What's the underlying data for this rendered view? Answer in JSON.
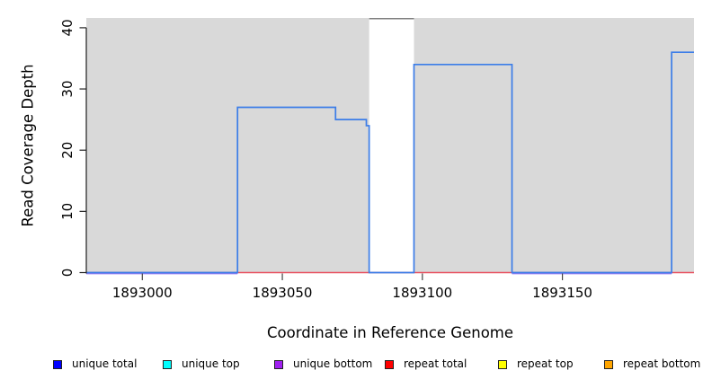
{
  "chart_data": {
    "type": "line",
    "subtype": "step-coverage",
    "title": "",
    "xlabel": "Coordinate in Reference Genome",
    "ylabel": "Read Coverage Depth",
    "xlim": [
      1892980,
      1893197
    ],
    "ylim": [
      0,
      41.6
    ],
    "xticks": [
      1893000,
      1893050,
      1893100,
      1893150
    ],
    "yticks": [
      0,
      10,
      20,
      30,
      40
    ],
    "grid": false,
    "background": "#d9d9d9",
    "gap_region": {
      "start": 1893081,
      "end": 1893097,
      "cap_color": "#7f7f7f",
      "fill": "#ffffff"
    },
    "series": [
      {
        "name": "unique total",
        "line_color": "#3c7de8",
        "step_points": [
          [
            1892980,
            0
          ],
          [
            1893034,
            27
          ],
          [
            1893069,
            25
          ],
          [
            1893080,
            24
          ],
          [
            1893081,
            0
          ],
          [
            1893097,
            34
          ],
          [
            1893132,
            0
          ],
          [
            1893189,
            36
          ],
          [
            1893197,
            36
          ]
        ]
      },
      {
        "name": "repeat total",
        "line_color": "#e8505f",
        "step_points": [
          [
            1892980,
            0
          ],
          [
            1893197,
            0
          ]
        ]
      },
      {
        "name": "unique bottom",
        "line_color": "#9b7df2",
        "value": 0,
        "visible_segments": [
          [
            1892980,
            1893034
          ],
          [
            1893132,
            1893189
          ]
        ]
      }
    ],
    "legend": [
      {
        "label": "unique total",
        "color": "#0000ff"
      },
      {
        "label": "unique top",
        "color": "#00ffff"
      },
      {
        "label": "unique bottom",
        "color": "#a020f0"
      },
      {
        "label": "repeat total",
        "color": "#ff0000"
      },
      {
        "label": "repeat top",
        "color": "#ffff00"
      },
      {
        "label": "repeat bottom",
        "color": "#ffa500"
      }
    ],
    "legend_position": "bottom-row",
    "axis_color": "#222222",
    "tick_label_color": "#000000"
  }
}
